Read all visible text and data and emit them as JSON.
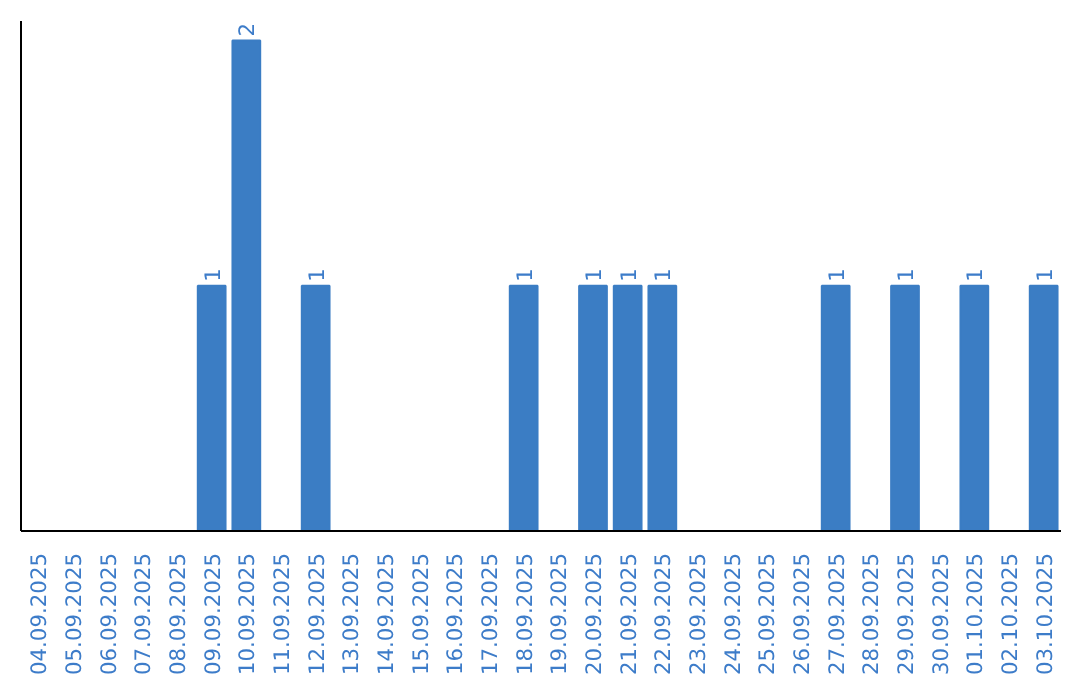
{
  "chart_data": {
    "type": "bar",
    "categories": [
      "04.09.2025",
      "05.09.2025",
      "06.09.2025",
      "07.09.2025",
      "08.09.2025",
      "09.09.2025",
      "10.09.2025",
      "11.09.2025",
      "12.09.2025",
      "13.09.2025",
      "14.09.2025",
      "15.09.2025",
      "16.09.2025",
      "17.09.2025",
      "18.09.2025",
      "19.09.2025",
      "20.09.2025",
      "21.09.2025",
      "22.09.2025",
      "23.09.2025",
      "24.09.2025",
      "25.09.2025",
      "26.09.2025",
      "27.09.2025",
      "28.09.2025",
      "29.09.2025",
      "30.09.2025",
      "01.10.2025",
      "02.10.2025",
      "03.10.2025"
    ],
    "values": [
      0,
      0,
      0,
      0,
      0,
      1,
      2,
      0,
      1,
      0,
      0,
      0,
      0,
      0,
      1,
      0,
      1,
      1,
      1,
      0,
      0,
      0,
      0,
      1,
      0,
      1,
      0,
      1,
      0,
      1
    ],
    "value_labels": [
      null,
      null,
      null,
      null,
      null,
      "1",
      "2",
      null,
      "1",
      null,
      null,
      null,
      null,
      null,
      "1",
      null,
      "1",
      "1",
      "1",
      null,
      null,
      null,
      null,
      "1",
      null,
      "1",
      null,
      "1",
      null,
      "1"
    ],
    "color": "#3b7dc4",
    "ylim": [
      0,
      2.08
    ],
    "tick_labels": "x"
  }
}
